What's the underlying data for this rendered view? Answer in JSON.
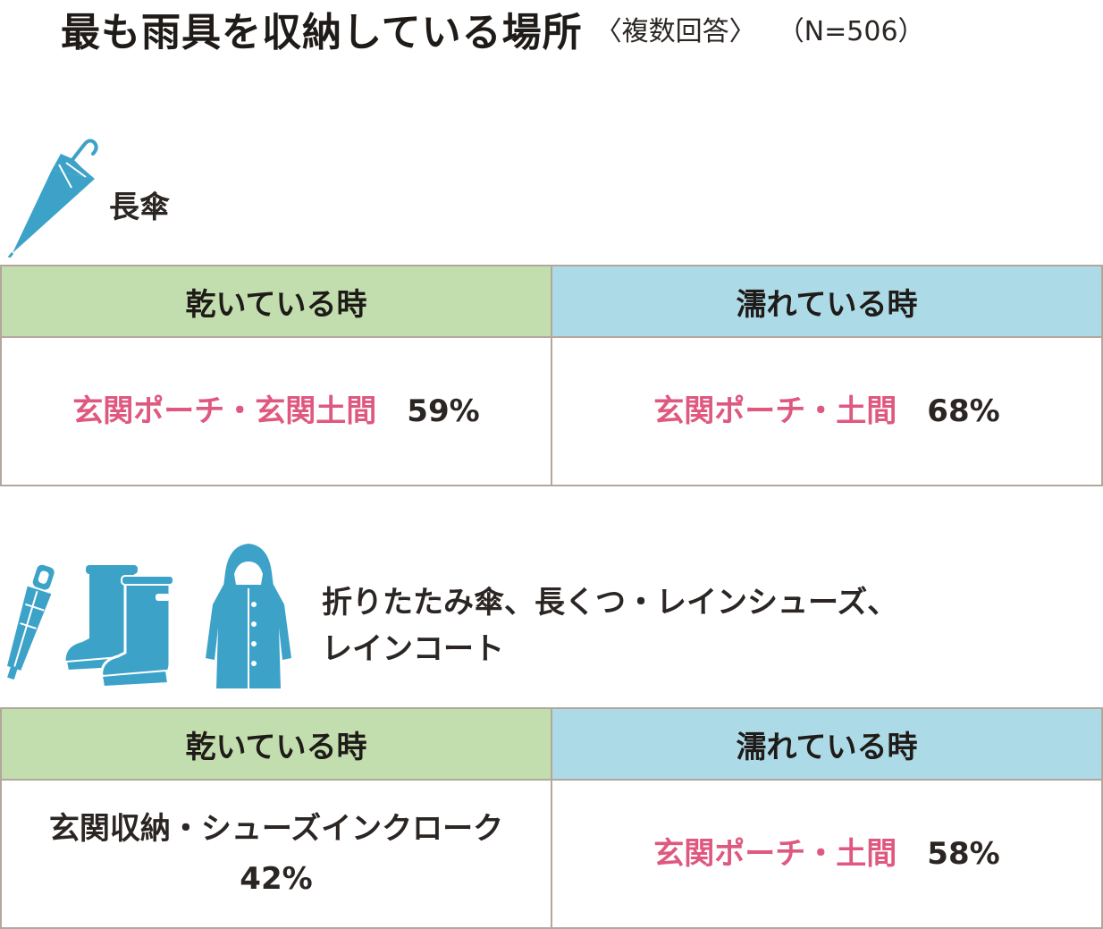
{
  "title": {
    "main": "最も雨具を収納している場所",
    "note": "〈複数回答〉",
    "sample": "（N=506）"
  },
  "icons": {
    "color": "#3da2c8",
    "section1": [
      "long-umbrella-icon"
    ],
    "section2": [
      "folding-umbrella-icon",
      "rain-boots-icon",
      "raincoat-icon"
    ]
  },
  "colors": {
    "dry_header": "#c2deae",
    "wet_header": "#acdae6",
    "highlight_text": "#df5880",
    "border": "#b3a79c"
  },
  "sections": [
    {
      "label": "長傘",
      "dry_header": "乾いている時",
      "wet_header": "濡れている時",
      "dry": {
        "place": "玄関ポーチ・玄関土間",
        "percent": "59%"
      },
      "wet": {
        "place": "玄関ポーチ・土間",
        "percent": "68%"
      }
    },
    {
      "label_line1": "折りたたみ傘、長くつ・レインシューズ、",
      "label_line2": "レインコート",
      "dry_header": "乾いている時",
      "wet_header": "濡れている時",
      "dry": {
        "place": "玄関収納・シューズインクローク",
        "percent": "42%"
      },
      "wet": {
        "place": "玄関ポーチ・土間",
        "percent": "58%"
      }
    }
  ]
}
